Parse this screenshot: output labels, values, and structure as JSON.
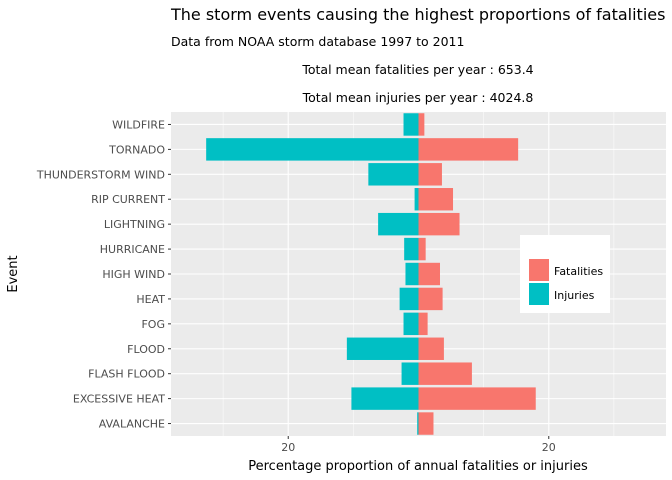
{
  "chart_data": {
    "type": "bar",
    "orientation": "horizontal",
    "title": "The storm events causing the highest proportions of fatalities",
    "subtitle": "Data from NOAA storm database 1997 to 2011",
    "annotations": [
      "Total mean fatalities per year : 653.4",
      "Total mean injuries per year : 4024.8"
    ],
    "xlabel": "Percentage proportion of annual fatalities or injuries",
    "ylabel": "Event",
    "xlim": [
      -38,
      38
    ],
    "xticks": [
      -20,
      20
    ],
    "xtick_labels": [
      "20",
      "20"
    ],
    "grid": true,
    "legend_position": "right",
    "categories": [
      "WILDFIRE",
      "TORNADO",
      "THUNDERSTORM WIND",
      "RIP CURRENT",
      "LIGHTNING",
      "HURRICANE",
      "HIGH WIND",
      "HEAT",
      "FOG",
      "FLOOD",
      "FLASH FLOOD",
      "EXCESSIVE HEAT",
      "AVALANCHE"
    ],
    "series": [
      {
        "name": "Fatalities",
        "color": "#F8766D",
        "values": [
          0.9,
          15.3,
          3.6,
          5.3,
          6.3,
          1.1,
          3.3,
          3.7,
          1.4,
          3.9,
          8.2,
          18.0,
          2.3
        ]
      },
      {
        "name": "Injuries",
        "color": "#00BFC4",
        "values": [
          -2.3,
          -32.6,
          -7.7,
          -0.6,
          -6.2,
          -2.2,
          -2.0,
          -2.9,
          -2.3,
          -11.0,
          -2.6,
          -10.3,
          -0.2
        ]
      }
    ]
  }
}
